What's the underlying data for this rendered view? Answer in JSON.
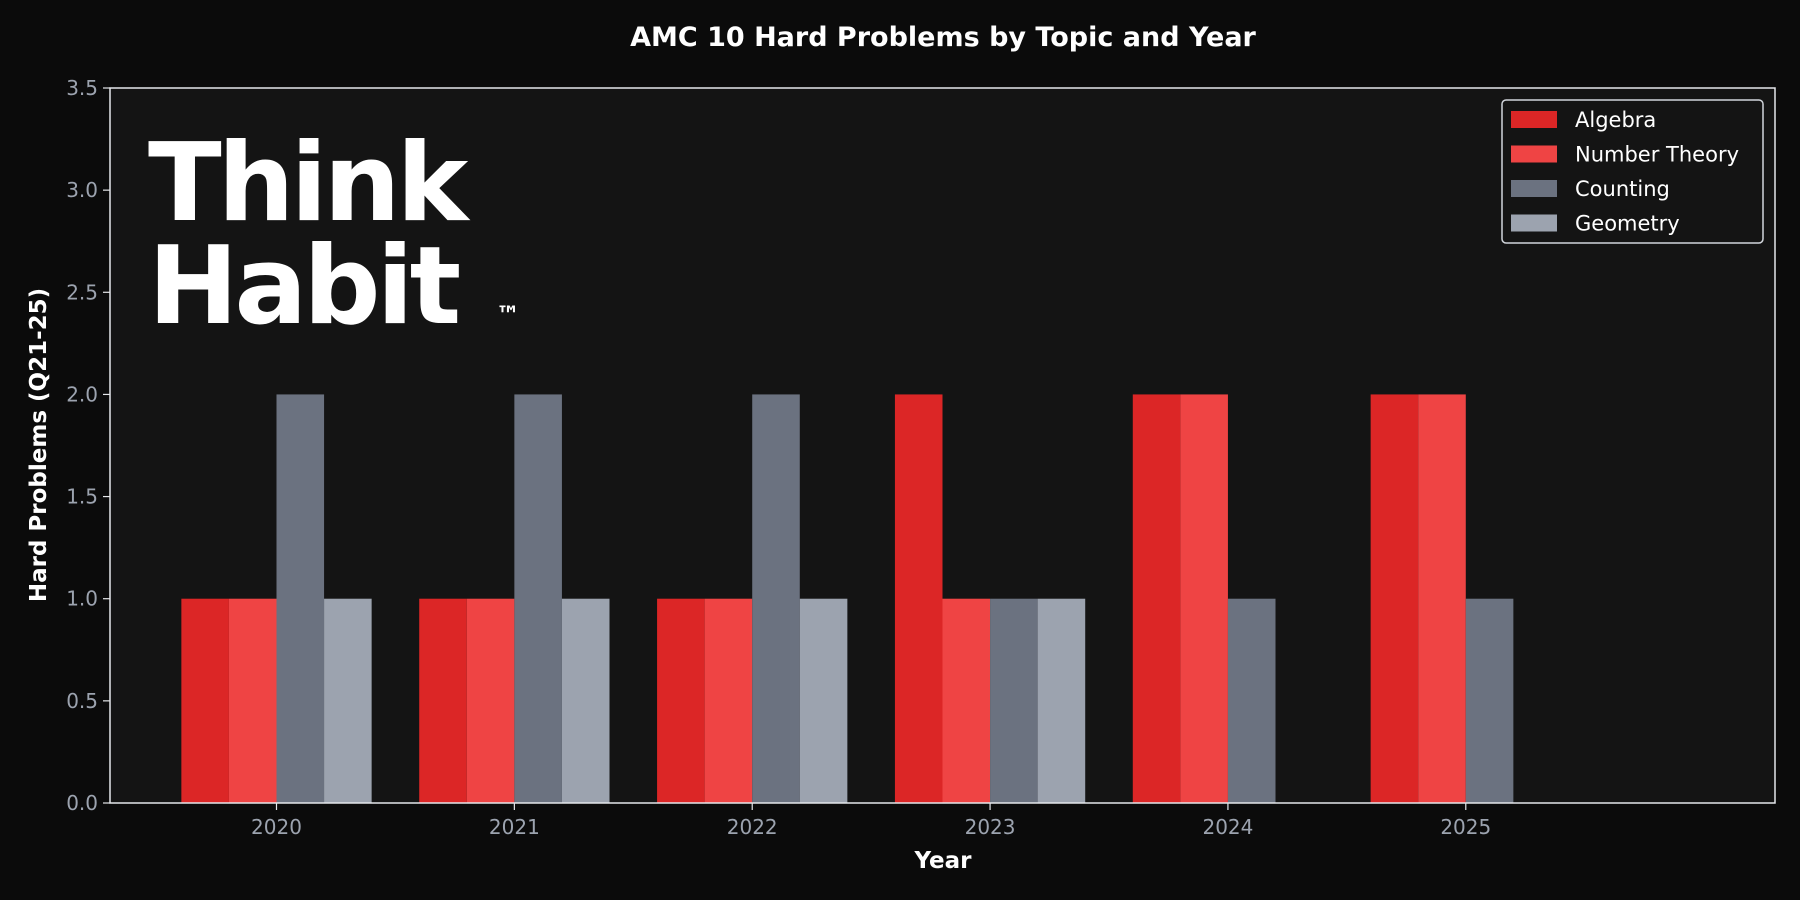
{
  "chart_data": {
    "type": "bar",
    "title": "AMC 10 Hard Problems by Topic and Year",
    "xlabel": "Year",
    "ylabel": "Hard Problems (Q21-25)",
    "categories": [
      "2020",
      "2021",
      "2022",
      "2023",
      "2024",
      "2025"
    ],
    "ylim": [
      0,
      3.5
    ],
    "yticks": [
      0.0,
      0.5,
      1.0,
      1.5,
      2.0,
      2.5,
      3.0,
      3.5
    ],
    "ytick_labels": [
      "0.0",
      "0.5",
      "1.0",
      "1.5",
      "2.0",
      "2.5",
      "3.0",
      "3.5"
    ],
    "grid": false,
    "legend_position": "top-right",
    "series": [
      {
        "name": "Algebra",
        "color": "#dc2626",
        "values": [
          1,
          1,
          1,
          2,
          2,
          2
        ]
      },
      {
        "name": "Number Theory",
        "color": "#ef4444",
        "values": [
          1,
          1,
          1,
          1,
          2,
          2
        ]
      },
      {
        "name": "Counting",
        "color": "#6b7280",
        "values": [
          2,
          2,
          2,
          1,
          1,
          1
        ]
      },
      {
        "name": "Geometry",
        "color": "#9ca3af",
        "values": [
          1,
          1,
          1,
          1,
          0,
          0
        ]
      }
    ]
  },
  "logo": {
    "line1": "Think",
    "line2": "Habit",
    "mark": "™"
  },
  "colors": {
    "page_background": "#0b0b0b",
    "plot_background": "#141414",
    "axis_line": "#e5e7eb",
    "tick_text": "#9ca3af",
    "text": "#ffffff"
  }
}
